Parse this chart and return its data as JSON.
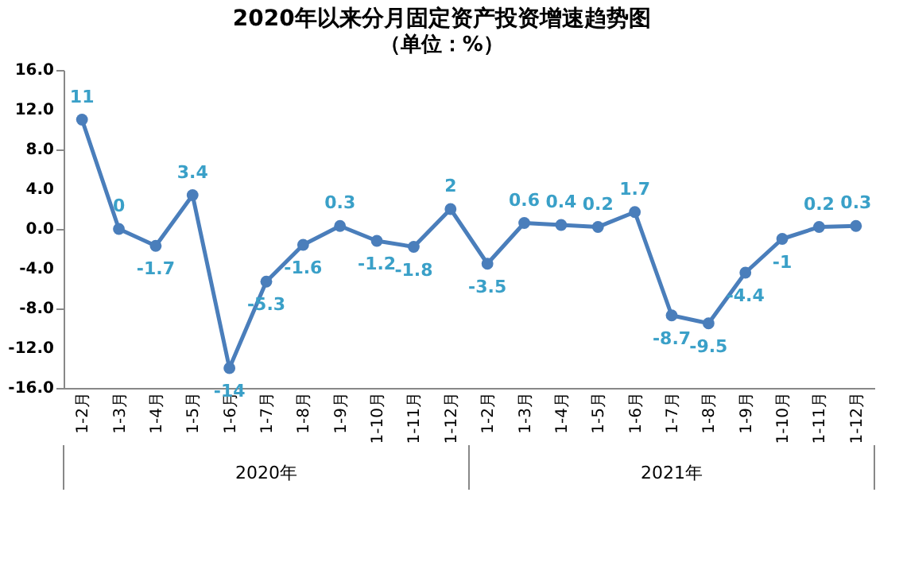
{
  "chart_data": {
    "type": "line",
    "title": "2020年以来分月固定资产投资增速趋势图",
    "subtitle": "（单位：%）",
    "categories": [
      "1-2月",
      "1-3月",
      "1-4月",
      "1-5月",
      "1-6月",
      "1-7月",
      "1-8月",
      "1-9月",
      "1-10月",
      "1-11月",
      "1-12月",
      "1-2月",
      "1-3月",
      "1-4月",
      "1-5月",
      "1-6月",
      "1-7月",
      "1-8月",
      "1-9月",
      "1-10月",
      "1-11月",
      "1-12月"
    ],
    "series": [
      {
        "color": "#4a7ebb",
        "values": [
          11,
          0,
          -1.7,
          3.4,
          -14,
          -5.3,
          -1.6,
          0.3,
          -1.2,
          -1.8,
          2,
          -3.5,
          0.6,
          0.4,
          0.2,
          1.7,
          -8.7,
          -9.5,
          -4.4,
          -1,
          0.2,
          0.3
        ]
      }
    ],
    "ylim": [
      -16,
      16
    ],
    "yticks": [
      {
        "value": -16,
        "label": "-16.0"
      },
      {
        "value": -12,
        "label": "-12.0"
      },
      {
        "value": -8,
        "label": "-8.0"
      },
      {
        "value": -4,
        "label": "-4.0"
      },
      {
        "value": 0,
        "label": "0.0"
      },
      {
        "value": 4,
        "label": "4.0"
      },
      {
        "value": 8,
        "label": "8.0"
      },
      {
        "value": 12,
        "label": "12.0"
      },
      {
        "value": 16,
        "label": "16.0"
      }
    ],
    "annotations": [
      "2020年",
      "2021年"
    ],
    "data_labels": true,
    "marker": "circle",
    "line_style": "solid",
    "grid": false
  }
}
